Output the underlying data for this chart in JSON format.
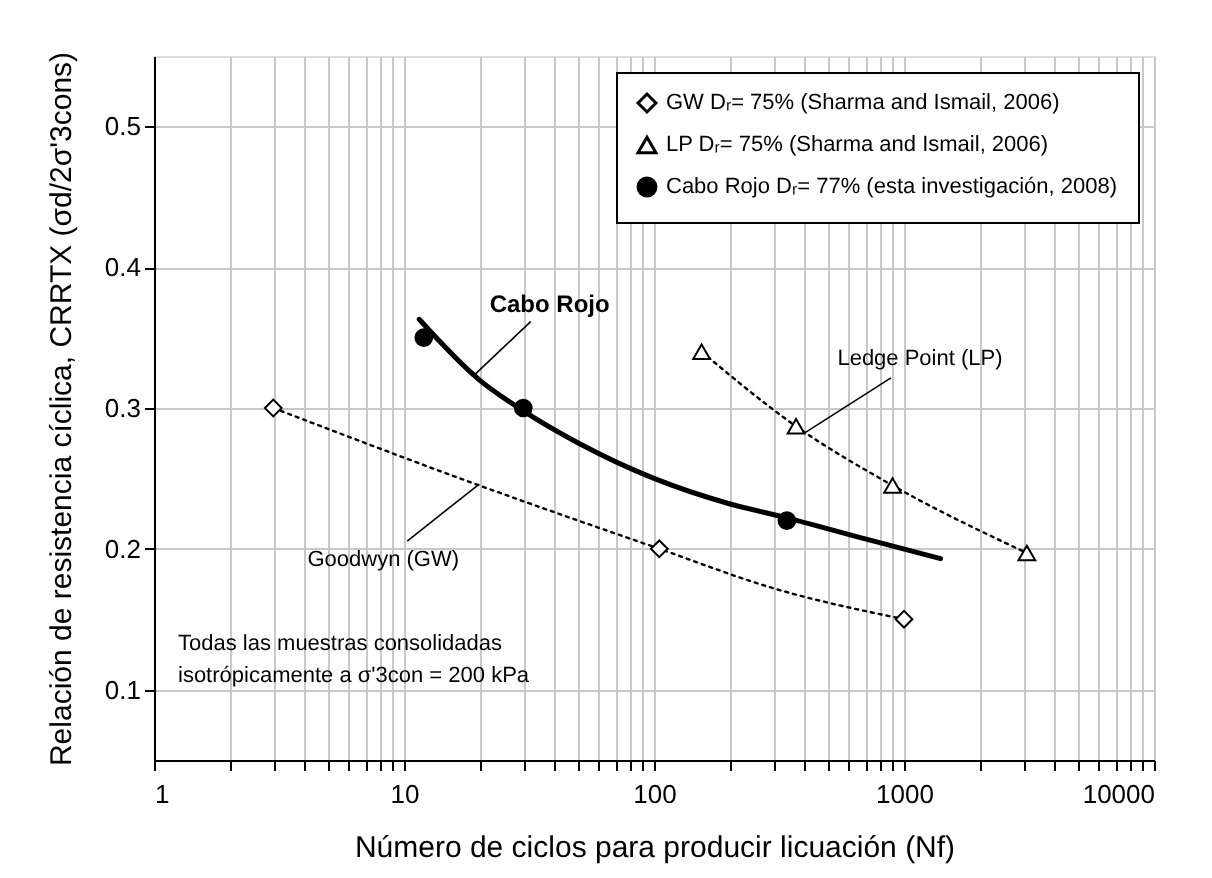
{
  "chart_data": {
    "type": "scatter",
    "xlabel": "Número de ciclos para producir licuación (Nf)",
    "ylabel": "Relación de resistencia cíclica, CRRTX (σd/2σ'3cons)",
    "log": "x",
    "xlim": [
      1,
      10000
    ],
    "ylim": [
      0.05,
      0.55
    ],
    "xticks": [
      1,
      {
        "value": 2,
        "label": null
      },
      {
        "value": 3,
        "label": null
      },
      {
        "value": 4,
        "label": null
      },
      {
        "value": 5,
        "label": null
      },
      {
        "value": 6,
        "label": null
      },
      {
        "value": 7,
        "label": null
      },
      {
        "value": 8,
        "label": null
      },
      {
        "value": 9,
        "label": null
      },
      10,
      {
        "value": 20,
        "label": null
      },
      {
        "value": 30,
        "label": null
      },
      {
        "value": 40,
        "label": null
      },
      {
        "value": 50,
        "label": null
      },
      {
        "value": 60,
        "label": null
      },
      {
        "value": 70,
        "label": null
      },
      {
        "value": 80,
        "label": null
      },
      {
        "value": 90,
        "label": null
      },
      100,
      {
        "value": 200,
        "label": null
      },
      {
        "value": 300,
        "label": null
      },
      {
        "value": 400,
        "label": null
      },
      {
        "value": 500,
        "label": null
      },
      {
        "value": 600,
        "label": null
      },
      {
        "value": 700,
        "label": null
      },
      {
        "value": 800,
        "label": null
      },
      {
        "value": 900,
        "label": null
      },
      1000,
      {
        "value": 2000,
        "label": null
      },
      {
        "value": 3000,
        "label": null
      },
      {
        "value": 4000,
        "label": null
      },
      {
        "value": 5000,
        "label": null
      },
      {
        "value": 6000,
        "label": null
      },
      {
        "value": 7000,
        "label": null
      },
      {
        "value": 8000,
        "label": null
      },
      {
        "value": 9000,
        "label": null
      },
      10000
    ],
    "yticks": [
      0.1,
      0.2,
      0.3,
      0.4,
      0.5
    ],
    "grid": true,
    "legend": "top right",
    "series": [
      {
        "type": "line",
        "color": "#000000",
        "line_style": "dotted",
        "marker": "none",
        "x": [
          3,
          20,
          105,
          300,
          1000
        ],
        "values": [
          0.3,
          0.245,
          0.2,
          0.172,
          0.15
        ]
      },
      {
        "type": "line",
        "color": "#000000",
        "line_style": "dotted",
        "marker": "none",
        "x": [
          155,
          370,
          900,
          3100
        ],
        "values": [
          0.34,
          0.287,
          0.245,
          0.197
        ]
      },
      {
        "type": "line",
        "color": "#000000",
        "line_style": "solid",
        "marker": "none",
        "x": [
          11.5,
          20,
          30,
          50,
          100,
          200,
          340,
          700,
          1400
        ],
        "values": [
          0.363,
          0.32,
          0.298,
          0.275,
          0.25,
          0.232,
          0.222,
          0.207,
          0.193
        ]
      },
      {
        "name": "GW Dᵣ= 75% (Sharma and Ismail, 2006)",
        "color": "#000000",
        "marker": "diamond",
        "x": [
          3,
          105,
          1000
        ],
        "values": [
          0.3,
          0.2,
          0.15
        ]
      },
      {
        "name": "LP Dᵣ= 75% (Sharma and Ismail, 2006)",
        "color": "#000000",
        "marker": "triangle",
        "x": [
          155,
          370,
          900,
          3100
        ],
        "values": [
          0.34,
          0.287,
          0.245,
          0.197
        ]
      },
      {
        "name": "Cabo Rojo Dᵣ= 77% (esta investigación, 2008)",
        "color": "#000000",
        "marker": "circle",
        "x": [
          12,
          30,
          340
        ],
        "values": [
          0.35,
          0.3,
          0.22
        ]
      }
    ],
    "annotations": [
      {
        "text": "Cabo Rojo",
        "x": 19,
        "y": 0.323
      },
      {
        "text": "Ledge Point (LP)",
        "x": 398,
        "y": 0.282
      },
      {
        "text": "Goodwyn (GW)",
        "x": 20,
        "y": 0.246
      },
      "Todas las muestras consolidadas\nisotrópicamente a σ'3con = 200 kPa"
    ]
  }
}
